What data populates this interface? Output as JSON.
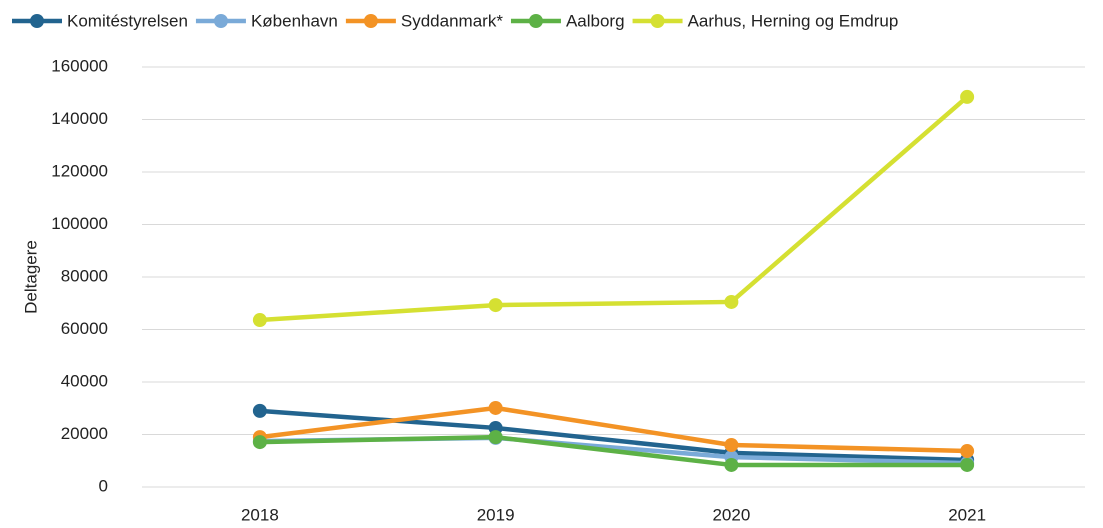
{
  "chart_data": {
    "type": "line",
    "y_label": "Deltagere",
    "categories": [
      "2018",
      "2019",
      "2020",
      "2021"
    ],
    "series": [
      {
        "name": "Komitéstyrelsen",
        "color": "#22648f",
        "values": [
          29000,
          22500,
          13000,
          10300
        ]
      },
      {
        "name": "København",
        "color": "#7aaad8",
        "values": [
          17500,
          18700,
          11400,
          9100
        ]
      },
      {
        "name": "Syddanmark*",
        "color": "#f39325",
        "values": [
          19000,
          30100,
          16000,
          13700
        ]
      },
      {
        "name": "Aalborg",
        "color": "#5db146",
        "values": [
          17100,
          19000,
          8400,
          8400
        ]
      },
      {
        "name": "Aarhus, Herning og Emdrup",
        "color": "#d5e032",
        "values": [
          63600,
          69300,
          70500,
          148600
        ]
      }
    ],
    "ylim": [
      0,
      160000
    ],
    "yticks": [
      0,
      20000,
      40000,
      60000,
      80000,
      100000,
      120000,
      140000,
      160000
    ],
    "grid": true,
    "legend": "top"
  }
}
